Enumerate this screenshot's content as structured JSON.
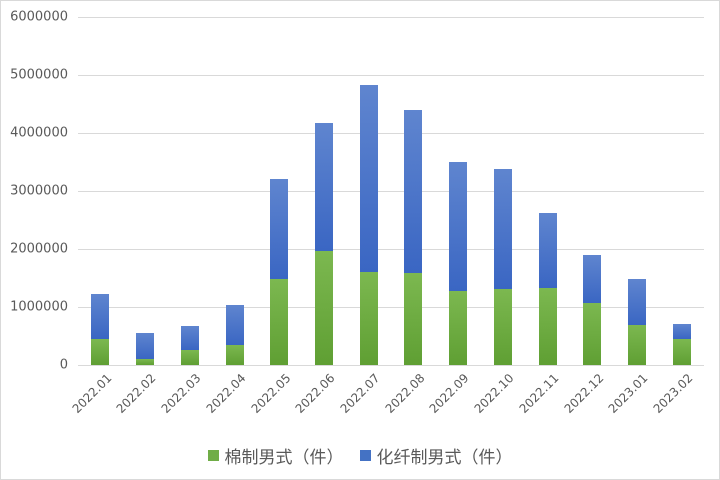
{
  "chart_data": {
    "type": "bar",
    "stacked": true,
    "title": "",
    "xlabel": "",
    "ylabel": "",
    "ylim": [
      0,
      6000000
    ],
    "yticks": [
      0,
      1000000,
      2000000,
      3000000,
      4000000,
      5000000,
      6000000
    ],
    "ytick_labels": [
      "0",
      "1000000",
      "2000000",
      "3000000",
      "4000000",
      "5000000",
      "6000000"
    ],
    "grid": true,
    "legend_position": "bottom",
    "categories": [
      "2022.01",
      "2022.02",
      "2022.03",
      "2022.04",
      "2022.05",
      "2022.06",
      "2022.07",
      "2022.08",
      "2022.09",
      "2022.10",
      "2022.11",
      "2022.12",
      "2023.01",
      "2023.02"
    ],
    "series": [
      {
        "name": "棉制男式（件）",
        "color": "#70ad47",
        "values": [
          450000,
          100000,
          260000,
          350000,
          1480000,
          1970000,
          1600000,
          1590000,
          1280000,
          1310000,
          1330000,
          1070000,
          690000,
          450000
        ]
      },
      {
        "name": "化纤制男式（件）",
        "color": "#4472c4",
        "values": [
          770000,
          450000,
          410000,
          680000,
          1720000,
          2200000,
          3230000,
          2810000,
          2220000,
          2070000,
          1290000,
          830000,
          790000,
          260000
        ]
      }
    ],
    "totals": [
      1220000,
      550000,
      670000,
      1030000,
      3200000,
      4170000,
      4830000,
      4400000,
      3500000,
      3380000,
      2620000,
      1900000,
      1480000,
      710000
    ]
  },
  "legend": {
    "items": [
      {
        "label": "棉制男式（件）",
        "color": "#70ad47"
      },
      {
        "label": "化纤制男式（件）",
        "color": "#4472c4"
      }
    ]
  }
}
